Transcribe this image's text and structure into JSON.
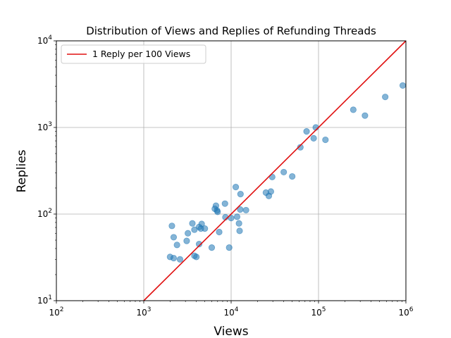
{
  "chart_data": {
    "type": "scatter",
    "title": "Distribution of Views and Replies of Refunding Threads",
    "xlabel": "Views",
    "ylabel": "Replies",
    "xscale": "log",
    "yscale": "log",
    "xlim": [
      100,
      1000000
    ],
    "ylim": [
      10,
      10000
    ],
    "x_ticks": [
      "10^2",
      "10^3",
      "10^4",
      "10^5",
      "10^6"
    ],
    "y_ticks": [
      "10^1",
      "10^2",
      "10^3",
      "10^4"
    ],
    "grid": true,
    "legend_position": "top-left",
    "colors": {
      "points": "#1f77b4",
      "line": "#e01010"
    },
    "series": [
      {
        "type": "scatter",
        "points": [
          [
            2000,
            32
          ],
          [
            2100,
            73
          ],
          [
            2200,
            31
          ],
          [
            2200,
            54
          ],
          [
            2400,
            44
          ],
          [
            2600,
            30
          ],
          [
            3100,
            49
          ],
          [
            3200,
            60
          ],
          [
            3600,
            78
          ],
          [
            3800,
            66
          ],
          [
            3800,
            33
          ],
          [
            4000,
            32
          ],
          [
            4300,
            45
          ],
          [
            4300,
            71
          ],
          [
            4500,
            68
          ],
          [
            4600,
            77
          ],
          [
            5000,
            68
          ],
          [
            6000,
            41
          ],
          [
            6500,
            115
          ],
          [
            6700,
            125
          ],
          [
            6900,
            110
          ],
          [
            7000,
            106
          ],
          [
            7300,
            62
          ],
          [
            8500,
            132
          ],
          [
            8600,
            92
          ],
          [
            9500,
            41
          ],
          [
            10000,
            90
          ],
          [
            11300,
            205
          ],
          [
            11700,
            93
          ],
          [
            12300,
            78
          ],
          [
            12500,
            64
          ],
          [
            12700,
            113
          ],
          [
            12800,
            170
          ],
          [
            14800,
            111
          ],
          [
            25000,
            177
          ],
          [
            27000,
            162
          ],
          [
            28500,
            182
          ],
          [
            29500,
            268
          ],
          [
            40000,
            305
          ],
          [
            50000,
            272
          ],
          [
            62000,
            590
          ],
          [
            73000,
            900
          ],
          [
            88000,
            750
          ],
          [
            93000,
            1000
          ],
          [
            120000,
            720
          ],
          [
            250000,
            1600
          ],
          [
            340000,
            1370
          ],
          [
            580000,
            2250
          ],
          [
            920000,
            3050
          ]
        ]
      },
      {
        "type": "line",
        "name": "1 Reply per 100 Views",
        "points": [
          [
            1000,
            10
          ],
          [
            1000000,
            10000
          ]
        ]
      }
    ]
  }
}
